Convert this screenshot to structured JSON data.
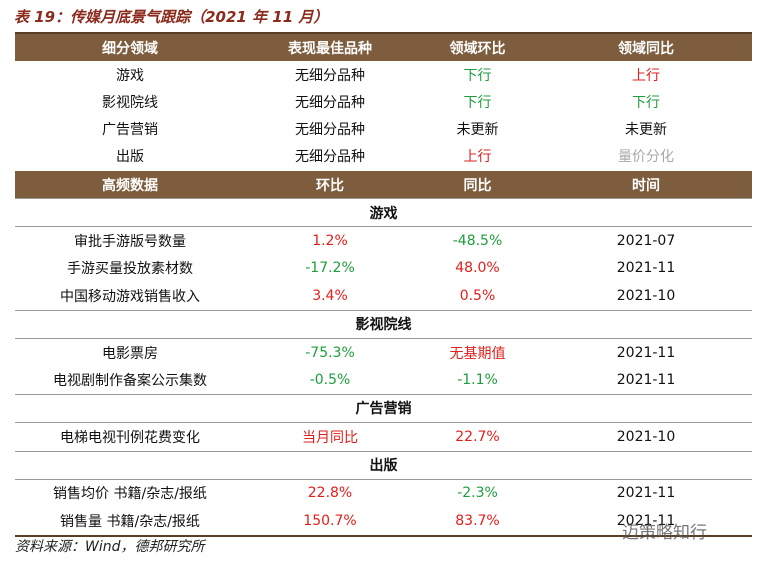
{
  "title": "表 19：传媒月底景气跟踪（2021 年 11 月）",
  "table1": {
    "header": [
      "细分领域",
      "表现最佳品种",
      "领域环比",
      "领域同比"
    ],
    "rows": [
      [
        "游戏",
        "无细分品种",
        "下行",
        "上行"
      ],
      [
        "影视院线",
        "无细分品种",
        "下行",
        "下行"
      ],
      [
        "广告营销",
        "无细分品种",
        "未更新",
        "未更新"
      ],
      [
        "出版",
        "无细分品种",
        "上行",
        "量价分化"
      ]
    ]
  },
  "table2": {
    "header": [
      "高频数据",
      "环比",
      "同比",
      "时间"
    ],
    "sections": [
      {
        "name": "游戏",
        "rows": [
          [
            "审批手游版号数量",
            "1.2%",
            "-48.5%",
            "2021-07"
          ],
          [
            "手游买量投放素材数",
            "-17.2%",
            "48.0%",
            "2021-11"
          ],
          [
            "中国移动游戏销售收入",
            "3.4%",
            "0.5%",
            "2021-10"
          ]
        ]
      },
      {
        "name": "影视院线",
        "rows": [
          [
            "电影票房",
            "-75.3%",
            "无基期值",
            "2021-11"
          ],
          [
            "电视剧制作备案公示集数",
            "-0.5%",
            "-1.1%",
            "2021-11"
          ]
        ]
      },
      {
        "name": "广告营销",
        "rows": [
          [
            "电梯电视刊例花费变化",
            "当月同比",
            "22.7%",
            "2021-10"
          ]
        ]
      },
      {
        "name": "出版",
        "rows": [
          [
            "销售均价 书籍/杂志/报纸",
            "22.8%",
            "-2.3%",
            "2021-11"
          ],
          [
            "销售量 书籍/杂志/报纸",
            "150.7%",
            "83.7%",
            "2021-11"
          ]
        ]
      }
    ]
  },
  "source": "资料来源：Wind，德邦研究所",
  "watermark": "迈策略知行"
}
